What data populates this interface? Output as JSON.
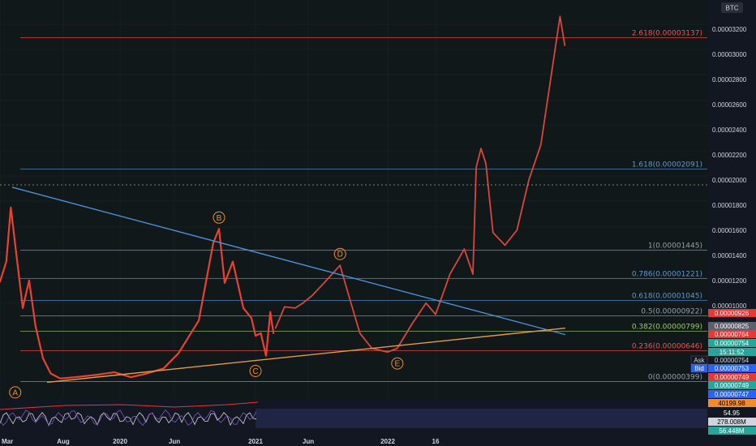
{
  "symbol_badge": "BTC",
  "colors": {
    "background": "#131722",
    "grid": "#1e2431",
    "fib_red": "#ef5350",
    "fib_blue": "#5b9bd5",
    "fib_gray": "#9aa0ab",
    "fib_green": "#9ccc65",
    "trend_blue": "#4a90d9",
    "support_orange": "#e39b3c",
    "price_red": "#e8432f",
    "projection": "#d9473a"
  },
  "price_axis": {
    "ticks": [
      "0.00003200",
      "0.00003000",
      "0.00002800",
      "0.00002600",
      "0.00002400",
      "0.00002200",
      "0.00002000",
      "0.00001800",
      "0.00001600",
      "0.00001400",
      "0.00001200",
      "0.00001000"
    ]
  },
  "time_axis": {
    "ticks": [
      "Mar",
      "Aug",
      "2020",
      "Jun",
      "2021",
      "Jun",
      "2022",
      "16"
    ]
  },
  "price_tags": [
    {
      "text": "0.00000926",
      "bg": "#e53935",
      "fg": "#ffffff"
    },
    {
      "text": "0.00000825",
      "bg": "#5d606b",
      "fg": "#ffffff"
    },
    {
      "text": "0.00000764",
      "bg": "#e53935",
      "fg": "#ffffff"
    },
    {
      "text": "0.00000754",
      "bg": "#26a69a",
      "fg": "#ffffff"
    },
    {
      "text": "15:11:52",
      "bg": "#26a69a",
      "fg": "#ffffff"
    },
    {
      "text": "0.00000754",
      "bg": "#131722",
      "fg": "#d1d4dc",
      "prefix": "Ask"
    },
    {
      "text": "0.00000753",
      "bg": "#2962ff",
      "fg": "#ffffff",
      "prefix": "Bid"
    },
    {
      "text": "0.00000749",
      "bg": "#e53935",
      "fg": "#ffffff"
    },
    {
      "text": "0.00000749",
      "bg": "#26a69a",
      "fg": "#ffffff"
    },
    {
      "text": "0.00000747",
      "bg": "#2962ff",
      "fg": "#ffffff"
    }
  ],
  "indicator_tags": [
    {
      "text": "40199.98",
      "bg": "#f28c28",
      "fg": "#000000"
    },
    {
      "text": "54.95",
      "bg": "#131722",
      "fg": "#ffffff"
    },
    {
      "text": "278.008M",
      "bg": "#d1d4dc",
      "fg": "#000000"
    },
    {
      "text": "56.448M",
      "bg": "#26a69a",
      "fg": "#ffffff"
    }
  ],
  "chart_data": {
    "type": "line",
    "scale": "linear",
    "x": [
      "2019-03",
      "2019-08",
      "2020-01",
      "2020-06",
      "2021-01",
      "2021-06",
      "2022-01",
      "2022-16"
    ],
    "ylim": [
      3.4e-06,
      3.32e-05
    ],
    "fib_levels": [
      {
        "label": "0(0.00000399)",
        "value": 3.99e-06,
        "color": "gray"
      },
      {
        "label": "0.236(0.00000646)",
        "value": 6.46e-06,
        "color": "red"
      },
      {
        "label": "0.382(0.00000799)",
        "value": 7.99e-06,
        "color": "green"
      },
      {
        "label": "0.5(0.00000922)",
        "value": 9.22e-06,
        "color": "gray"
      },
      {
        "label": "0.618(0.00001045)",
        "value": 1.045e-05,
        "color": "blue"
      },
      {
        "label": "0.786(0.00001221)",
        "value": 1.221e-05,
        "color": "blue"
      },
      {
        "label": "1(0.00001445)",
        "value": 1.445e-05,
        "color": "gray"
      },
      {
        "label": "1.618(0.00002091)",
        "value": 2.091e-05,
        "color": "blue"
      },
      {
        "label": "2.618(0.00003137)",
        "value": 3.137e-05,
        "color": "red"
      }
    ],
    "wave_points": [
      {
        "label": "A",
        "t": 0.24,
        "value": 4e-06
      },
      {
        "label": "B",
        "t": 3.55,
        "value": 1.61e-05
      },
      {
        "label": "C",
        "t": 4.0,
        "value": 5.7e-06
      },
      {
        "label": "D",
        "t": 5.4,
        "value": 1.32e-05
      },
      {
        "label": "E",
        "t": 6.2,
        "value": 6.3e-06
      }
    ],
    "series": [
      {
        "name": "price",
        "points": [
          [
            0,
            1.19e-05
          ],
          [
            0.1,
            1.35e-05
          ],
          [
            0.17,
            1.78e-05
          ],
          [
            0.26,
            1.4e-05
          ],
          [
            0.36,
            9.8e-06
          ],
          [
            0.46,
            1.2e-05
          ],
          [
            0.56,
            8.4e-06
          ],
          [
            0.68,
            5.8e-06
          ],
          [
            0.8,
            4.6e-06
          ],
          [
            0.95,
            4.2e-06
          ],
          [
            1.2,
            4.3e-06
          ],
          [
            1.6,
            4.5e-06
          ],
          [
            1.9,
            4.7e-06
          ],
          [
            2.2,
            4.3e-06
          ],
          [
            2.5,
            4.6e-06
          ],
          [
            2.8,
            5e-06
          ],
          [
            3.05,
            6.2e-06
          ],
          [
            3.3,
            8.8e-06
          ],
          [
            3.48,
            1.5e-05
          ],
          [
            3.55,
            1.61e-05
          ],
          [
            3.62,
            1.18e-05
          ],
          [
            3.72,
            1.35e-05
          ],
          [
            3.85,
            9.8e-06
          ],
          [
            3.95,
            9e-06
          ],
          [
            4.0,
            7.6e-06
          ],
          [
            4.1,
            7.8e-06
          ],
          [
            4.2,
            6e-06
          ],
          [
            4.28,
            9.5e-06
          ],
          [
            4.34,
            7.8e-06
          ]
        ]
      },
      {
        "name": "projection",
        "points": [
          [
            4.38,
            8.2e-06
          ],
          [
            4.55,
            9.9e-06
          ],
          [
            4.75,
            9.8e-06
          ],
          [
            4.9,
            1.02e-05
          ],
          [
            5.05,
            1.08e-05
          ],
          [
            5.2,
            1.18e-05
          ],
          [
            5.4,
            1.32e-05
          ],
          [
            5.5,
            1.1e-05
          ],
          [
            5.65,
            7.8e-06
          ],
          [
            5.8,
            6.6e-06
          ],
          [
            6.0,
            6.3e-06
          ],
          [
            6.2,
            6.6e-06
          ],
          [
            6.5,
            8.5e-06
          ],
          [
            6.8,
            1.02e-05
          ],
          [
            7.0,
            9.3e-06
          ],
          [
            7.3,
            1.25e-05
          ],
          [
            7.6,
            1.45e-05
          ],
          [
            7.78,
            1.25e-05
          ],
          [
            7.85,
            2.1e-05
          ],
          [
            7.95,
            2.25e-05
          ],
          [
            8.05,
            2.13e-05
          ],
          [
            8.2,
            1.58e-05
          ],
          [
            8.45,
            1.48e-05
          ],
          [
            8.7,
            1.6e-05
          ],
          [
            8.95,
            2e-05
          ],
          [
            9.2,
            2.28e-05
          ],
          [
            9.6,
            3.3e-05
          ],
          [
            9.7,
            3.07e-05
          ]
        ]
      },
      {
        "name": "trendline",
        "points": [
          [
            0.2,
            1.94e-05
          ],
          [
            9.7,
            7.7e-06
          ]
        ]
      },
      {
        "name": "support",
        "points": [
          [
            0.75,
            3.9e-06
          ],
          [
            9.7,
            8.2e-06
          ]
        ]
      }
    ]
  }
}
